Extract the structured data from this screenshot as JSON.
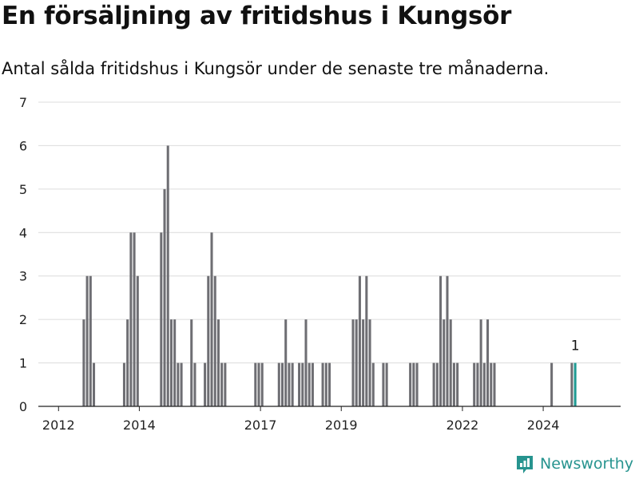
{
  "title": "En försäljning av fritidshus i Kungsör",
  "subtitle": "Antal sålda fritidshus i Kungsör under de senaste tre månaderna.",
  "brand": "Newsworthy",
  "colors": {
    "bar": "#6e6e73",
    "highlight": "#1f9a93",
    "grid": "#dcdcdc",
    "axis": "#222222",
    "brand": "#27948f"
  },
  "chart_data": {
    "type": "bar",
    "title": "En försäljning av fritidshus i Kungsör",
    "subtitle": "Antal sålda fritidshus i Kungsör under de senaste tre månaderna.",
    "xlabel": "",
    "ylabel": "",
    "grid": true,
    "ylim": [
      0,
      7
    ],
    "yticks": [
      0,
      1,
      2,
      3,
      4,
      5,
      6,
      7
    ],
    "xlim": [
      "2011-07",
      "2025-12"
    ],
    "xticks": [
      "2012",
      "2014",
      "2017",
      "2019",
      "2022",
      "2024"
    ],
    "series": [
      {
        "values": [
          {
            "date": "2012-08",
            "value": 2
          },
          {
            "date": "2012-09",
            "value": 3
          },
          {
            "date": "2012-10",
            "value": 3
          },
          {
            "date": "2012-11",
            "value": 1
          },
          {
            "date": "2013-08",
            "value": 1
          },
          {
            "date": "2013-09",
            "value": 2
          },
          {
            "date": "2013-10",
            "value": 4
          },
          {
            "date": "2013-11",
            "value": 4
          },
          {
            "date": "2013-12",
            "value": 3
          },
          {
            "date": "2014-07",
            "value": 4
          },
          {
            "date": "2014-08",
            "value": 5
          },
          {
            "date": "2014-09",
            "value": 6
          },
          {
            "date": "2014-10",
            "value": 2
          },
          {
            "date": "2014-11",
            "value": 2
          },
          {
            "date": "2014-12",
            "value": 1
          },
          {
            "date": "2015-01",
            "value": 1
          },
          {
            "date": "2015-04",
            "value": 2
          },
          {
            "date": "2015-05",
            "value": 1
          },
          {
            "date": "2015-08",
            "value": 1
          },
          {
            "date": "2015-09",
            "value": 3
          },
          {
            "date": "2015-10",
            "value": 4
          },
          {
            "date": "2015-11",
            "value": 3
          },
          {
            "date": "2015-12",
            "value": 2
          },
          {
            "date": "2016-01",
            "value": 1
          },
          {
            "date": "2016-02",
            "value": 1
          },
          {
            "date": "2016-11",
            "value": 1
          },
          {
            "date": "2016-12",
            "value": 1
          },
          {
            "date": "2017-01",
            "value": 1
          },
          {
            "date": "2017-06",
            "value": 1
          },
          {
            "date": "2017-07",
            "value": 1
          },
          {
            "date": "2017-08",
            "value": 2
          },
          {
            "date": "2017-09",
            "value": 1
          },
          {
            "date": "2017-10",
            "value": 1
          },
          {
            "date": "2017-12",
            "value": 1
          },
          {
            "date": "2018-01",
            "value": 1
          },
          {
            "date": "2018-02",
            "value": 2
          },
          {
            "date": "2018-03",
            "value": 1
          },
          {
            "date": "2018-04",
            "value": 1
          },
          {
            "date": "2018-07",
            "value": 1
          },
          {
            "date": "2018-08",
            "value": 1
          },
          {
            "date": "2018-09",
            "value": 1
          },
          {
            "date": "2019-04",
            "value": 2
          },
          {
            "date": "2019-05",
            "value": 2
          },
          {
            "date": "2019-06",
            "value": 3
          },
          {
            "date": "2019-07",
            "value": 2
          },
          {
            "date": "2019-08",
            "value": 3
          },
          {
            "date": "2019-09",
            "value": 2
          },
          {
            "date": "2019-10",
            "value": 1
          },
          {
            "date": "2020-01",
            "value": 1
          },
          {
            "date": "2020-02",
            "value": 1
          },
          {
            "date": "2020-09",
            "value": 1
          },
          {
            "date": "2020-10",
            "value": 1
          },
          {
            "date": "2020-11",
            "value": 1
          },
          {
            "date": "2021-04",
            "value": 1
          },
          {
            "date": "2021-05",
            "value": 1
          },
          {
            "date": "2021-06",
            "value": 3
          },
          {
            "date": "2021-07",
            "value": 2
          },
          {
            "date": "2021-08",
            "value": 3
          },
          {
            "date": "2021-09",
            "value": 2
          },
          {
            "date": "2021-10",
            "value": 1
          },
          {
            "date": "2021-11",
            "value": 1
          },
          {
            "date": "2022-04",
            "value": 1
          },
          {
            "date": "2022-05",
            "value": 1
          },
          {
            "date": "2022-06",
            "value": 2
          },
          {
            "date": "2022-07",
            "value": 1
          },
          {
            "date": "2022-08",
            "value": 2
          },
          {
            "date": "2022-09",
            "value": 1
          },
          {
            "date": "2022-10",
            "value": 1
          },
          {
            "date": "2024-03",
            "value": 1
          },
          {
            "date": "2024-09",
            "value": 1
          },
          {
            "date": "2024-10",
            "value": 1,
            "highlight": true,
            "label": "1"
          }
        ]
      }
    ]
  }
}
